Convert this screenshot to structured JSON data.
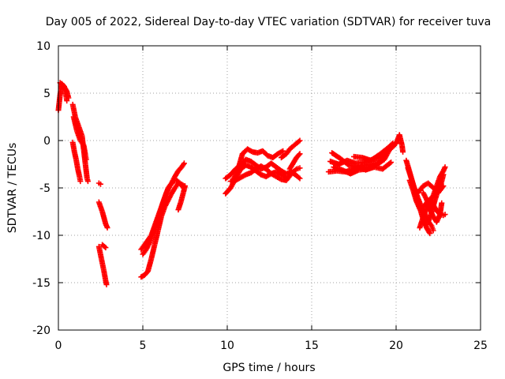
{
  "chart_data": {
    "type": "scatter",
    "title": "Day 005 of 2022, Sidereal Day-to-day VTEC variation (SDTVAR) for receiver tuva",
    "xlabel": "GPS time / hours",
    "ylabel": "SDTVAR / TECUs",
    "xlim": [
      0,
      25
    ],
    "ylim": [
      -20,
      10
    ],
    "xticks": [
      0,
      5,
      10,
      15,
      20,
      25
    ],
    "yticks": [
      -20,
      -15,
      -10,
      -5,
      0,
      5,
      10
    ],
    "xtick_labels": [
      "0",
      "5",
      "10",
      "15",
      "20",
      "25"
    ],
    "ytick_labels": [
      "-20",
      "-15",
      "-10",
      "-5",
      "0",
      "5",
      "10"
    ],
    "grid": true,
    "marker": "plus",
    "color": "#ff0000",
    "segments": [
      [
        [
          0.0,
          3.2
        ],
        [
          0.1,
          4.8
        ],
        [
          0.2,
          6.0
        ],
        [
          0.35,
          5.7
        ],
        [
          0.45,
          4.8
        ],
        [
          0.5,
          4.2
        ]
      ],
      [
        [
          0.1,
          6.1
        ],
        [
          0.3,
          5.8
        ],
        [
          0.5,
          5.2
        ],
        [
          0.6,
          4.5
        ]
      ],
      [
        [
          0.85,
          3.8
        ],
        [
          1.0,
          2.5
        ],
        [
          1.2,
          1.5
        ],
        [
          1.4,
          0.5
        ],
        [
          1.5,
          -1.0
        ],
        [
          1.6,
          -2.5
        ],
        [
          1.7,
          -4.0
        ],
        [
          1.75,
          -4.3
        ]
      ],
      [
        [
          0.9,
          2.5
        ],
        [
          1.1,
          1.0
        ],
        [
          1.3,
          0.0
        ],
        [
          1.5,
          -0.5
        ],
        [
          1.6,
          -1.5
        ],
        [
          1.65,
          -2.0
        ]
      ],
      [
        [
          0.85,
          -0.2
        ],
        [
          0.95,
          -1.2
        ],
        [
          1.05,
          -2.0
        ],
        [
          1.15,
          -3.0
        ],
        [
          1.25,
          -3.8
        ],
        [
          1.3,
          -4.3
        ]
      ],
      [
        [
          2.4,
          -4.5
        ],
        [
          2.5,
          -4.6
        ]
      ],
      [
        [
          2.4,
          -6.5
        ],
        [
          2.6,
          -7.5
        ],
        [
          2.8,
          -8.8
        ],
        [
          2.9,
          -9.2
        ]
      ],
      [
        [
          2.4,
          -11.2
        ],
        [
          2.55,
          -12.5
        ],
        [
          2.7,
          -13.8
        ],
        [
          2.8,
          -14.8
        ],
        [
          2.85,
          -15.2
        ]
      ],
      [
        [
          2.6,
          -11.0
        ],
        [
          2.8,
          -11.3
        ]
      ],
      [
        [
          4.9,
          -14.4
        ],
        [
          5.1,
          -14.2
        ],
        [
          5.3,
          -13.8
        ],
        [
          5.5,
          -12.5
        ],
        [
          5.7,
          -11.0
        ],
        [
          5.9,
          -9.5
        ],
        [
          6.1,
          -8.0
        ],
        [
          6.3,
          -7.0
        ],
        [
          6.5,
          -6.3
        ],
        [
          6.7,
          -5.6
        ],
        [
          6.9,
          -5.0
        ],
        [
          7.1,
          -4.5
        ],
        [
          7.3,
          -4.6
        ],
        [
          7.45,
          -4.8
        ]
      ],
      [
        [
          4.9,
          -11.5
        ],
        [
          5.1,
          -11.0
        ],
        [
          5.3,
          -10.5
        ],
        [
          5.5,
          -10.0
        ],
        [
          5.7,
          -9.0
        ],
        [
          5.9,
          -8.0
        ],
        [
          6.1,
          -7.0
        ],
        [
          6.3,
          -6.0
        ],
        [
          6.5,
          -5.0
        ],
        [
          6.7,
          -4.5
        ],
        [
          6.9,
          -3.8
        ],
        [
          7.1,
          -3.2
        ],
        [
          7.3,
          -2.8
        ],
        [
          7.45,
          -2.4
        ]
      ],
      [
        [
          5.0,
          -12.0
        ],
        [
          5.2,
          -11.5
        ],
        [
          5.4,
          -10.8
        ],
        [
          5.6,
          -9.8
        ],
        [
          5.8,
          -8.7
        ],
        [
          6.0,
          -7.7
        ],
        [
          6.2,
          -6.5
        ],
        [
          6.4,
          -5.5
        ],
        [
          6.6,
          -4.8
        ],
        [
          6.8,
          -4.3
        ],
        [
          7.0,
          -4.2
        ],
        [
          7.2,
          -4.5
        ],
        [
          7.4,
          -5.0
        ]
      ],
      [
        [
          7.1,
          -7.3
        ],
        [
          7.25,
          -6.5
        ],
        [
          7.4,
          -5.5
        ],
        [
          7.5,
          -4.8
        ]
      ],
      [
        [
          9.9,
          -5.6
        ],
        [
          10.2,
          -5.0
        ],
        [
          10.5,
          -4.0
        ],
        [
          10.8,
          -3.0
        ],
        [
          11.1,
          -2.6
        ],
        [
          11.4,
          -2.8
        ],
        [
          11.7,
          -3.2
        ],
        [
          12.0,
          -3.6
        ],
        [
          12.3,
          -3.8
        ],
        [
          12.6,
          -3.5
        ],
        [
          12.9,
          -3.8
        ],
        [
          13.2,
          -4.1
        ],
        [
          13.5,
          -4.2
        ],
        [
          13.8,
          -3.5
        ],
        [
          14.1,
          -3.0
        ],
        [
          14.3,
          -2.9
        ]
      ],
      [
        [
          9.9,
          -4.0
        ],
        [
          10.2,
          -3.6
        ],
        [
          10.5,
          -3.0
        ],
        [
          10.8,
          -2.6
        ],
        [
          11.1,
          -2.0
        ],
        [
          11.4,
          -2.2
        ],
        [
          11.7,
          -2.6
        ],
        [
          12.0,
          -3.0
        ],
        [
          12.3,
          -2.8
        ],
        [
          12.6,
          -2.4
        ],
        [
          12.9,
          -2.8
        ],
        [
          13.2,
          -3.2
        ],
        [
          13.5,
          -3.5
        ],
        [
          13.8,
          -3.3
        ],
        [
          14.1,
          -3.7
        ],
        [
          14.3,
          -4.0
        ]
      ],
      [
        [
          10.2,
          -4.3
        ],
        [
          10.5,
          -4.2
        ],
        [
          10.8,
          -3.9
        ],
        [
          11.1,
          -3.6
        ],
        [
          11.4,
          -3.4
        ],
        [
          11.7,
          -3.0
        ],
        [
          12.0,
          -2.7
        ],
        [
          12.3,
          -3.0
        ],
        [
          12.6,
          -3.5
        ],
        [
          12.9,
          -3.3
        ],
        [
          13.2,
          -3.6
        ],
        [
          13.5,
          -3.9
        ]
      ],
      [
        [
          10.3,
          -4.3
        ],
        [
          10.6,
          -3.3
        ],
        [
          10.9,
          -1.4
        ],
        [
          11.2,
          -0.9
        ],
        [
          11.5,
          -1.2
        ],
        [
          11.8,
          -1.3
        ],
        [
          12.1,
          -1.1
        ],
        [
          12.4,
          -1.6
        ],
        [
          12.7,
          -1.8
        ],
        [
          13.0,
          -1.4
        ],
        [
          13.3,
          -1.1
        ]
      ],
      [
        [
          13.2,
          -1.8
        ],
        [
          13.5,
          -1.4
        ],
        [
          13.7,
          -0.9
        ],
        [
          13.9,
          -0.6
        ],
        [
          14.1,
          -0.3
        ],
        [
          14.3,
          0.0
        ]
      ],
      [
        [
          13.7,
          -3.0
        ],
        [
          13.9,
          -2.4
        ],
        [
          14.1,
          -1.8
        ],
        [
          14.3,
          -1.4
        ]
      ],
      [
        [
          16.0,
          -3.3
        ],
        [
          16.5,
          -3.2
        ],
        [
          17.0,
          -3.3
        ],
        [
          17.5,
          -3.0
        ],
        [
          18.0,
          -2.7
        ],
        [
          18.5,
          -2.5
        ],
        [
          19.0,
          -2.3
        ],
        [
          19.2,
          -2.0
        ]
      ],
      [
        [
          16.1,
          -2.2
        ],
        [
          16.6,
          -2.5
        ],
        [
          17.1,
          -2.1
        ],
        [
          17.6,
          -2.4
        ],
        [
          18.1,
          -2.3
        ],
        [
          18.6,
          -2.0
        ],
        [
          19.1,
          -1.8
        ],
        [
          19.5,
          -1.0
        ],
        [
          19.8,
          -0.5
        ]
      ],
      [
        [
          16.2,
          -1.3
        ],
        [
          16.7,
          -1.9
        ],
        [
          17.2,
          -2.6
        ],
        [
          17.7,
          -2.8
        ],
        [
          18.2,
          -3.1
        ],
        [
          18.7,
          -2.8
        ],
        [
          19.2,
          -3.0
        ],
        [
          19.7,
          -2.3
        ]
      ],
      [
        [
          16.3,
          -2.8
        ],
        [
          16.8,
          -3.1
        ],
        [
          17.3,
          -3.5
        ],
        [
          17.8,
          -3.1
        ],
        [
          18.3,
          -3.0
        ],
        [
          18.8,
          -2.6
        ],
        [
          19.3,
          -2.0
        ],
        [
          19.6,
          -1.0
        ],
        [
          19.9,
          -0.5
        ],
        [
          20.0,
          -0.2
        ]
      ],
      [
        [
          17.5,
          -1.7
        ],
        [
          18.0,
          -1.8
        ],
        [
          18.5,
          -2.1
        ],
        [
          19.0,
          -1.5
        ],
        [
          19.5,
          -0.8
        ],
        [
          19.8,
          -0.3
        ]
      ],
      [
        [
          20.0,
          -0.3
        ],
        [
          20.2,
          0.6
        ],
        [
          20.35,
          -0.5
        ],
        [
          20.4,
          -1.2
        ]
      ],
      [
        [
          20.6,
          -2.1
        ],
        [
          20.8,
          -3.3
        ],
        [
          21.0,
          -4.6
        ],
        [
          21.2,
          -6.0
        ],
        [
          21.4,
          -7.1
        ],
        [
          21.6,
          -8.3
        ],
        [
          21.8,
          -9.2
        ],
        [
          22.0,
          -9.8
        ]
      ],
      [
        [
          20.7,
          -2.9
        ],
        [
          20.9,
          -4.0
        ],
        [
          21.1,
          -5.1
        ],
        [
          21.3,
          -6.1
        ],
        [
          21.5,
          -7.0
        ],
        [
          21.7,
          -7.7
        ],
        [
          21.9,
          -8.5
        ],
        [
          22.1,
          -9.0
        ],
        [
          22.2,
          -9.5
        ]
      ],
      [
        [
          20.8,
          -4.2
        ],
        [
          21.0,
          -5.2
        ],
        [
          21.2,
          -6.4
        ],
        [
          21.4,
          -7.2
        ],
        [
          21.6,
          -7.0
        ],
        [
          21.8,
          -6.6
        ],
        [
          22.0,
          -6.2
        ],
        [
          22.2,
          -6.8
        ],
        [
          22.4,
          -7.4
        ],
        [
          22.6,
          -7.8
        ],
        [
          22.8,
          -7.9
        ],
        [
          22.9,
          -7.8
        ]
      ],
      [
        [
          21.0,
          -5.0
        ],
        [
          21.3,
          -5.5
        ],
        [
          21.6,
          -4.8
        ],
        [
          21.9,
          -4.5
        ],
        [
          22.2,
          -5.0
        ],
        [
          22.5,
          -5.5
        ],
        [
          22.8,
          -4.8
        ]
      ],
      [
        [
          21.4,
          -9.2
        ],
        [
          21.6,
          -8.1
        ],
        [
          21.8,
          -7.2
        ],
        [
          22.0,
          -6.4
        ],
        [
          22.2,
          -5.8
        ],
        [
          22.4,
          -4.8
        ],
        [
          22.6,
          -3.8
        ],
        [
          22.8,
          -3.2
        ],
        [
          22.9,
          -2.8
        ]
      ],
      [
        [
          21.6,
          -5.5
        ],
        [
          21.8,
          -6.2
        ],
        [
          22.0,
          -7.3
        ],
        [
          22.2,
          -8.0
        ],
        [
          22.4,
          -8.6
        ],
        [
          22.6,
          -7.8
        ],
        [
          22.7,
          -6.6
        ]
      ],
      [
        [
          21.9,
          -8.6
        ],
        [
          22.1,
          -7.6
        ],
        [
          22.3,
          -6.3
        ],
        [
          22.5,
          -5.2
        ],
        [
          22.7,
          -4.3
        ],
        [
          22.8,
          -3.6
        ]
      ]
    ]
  }
}
